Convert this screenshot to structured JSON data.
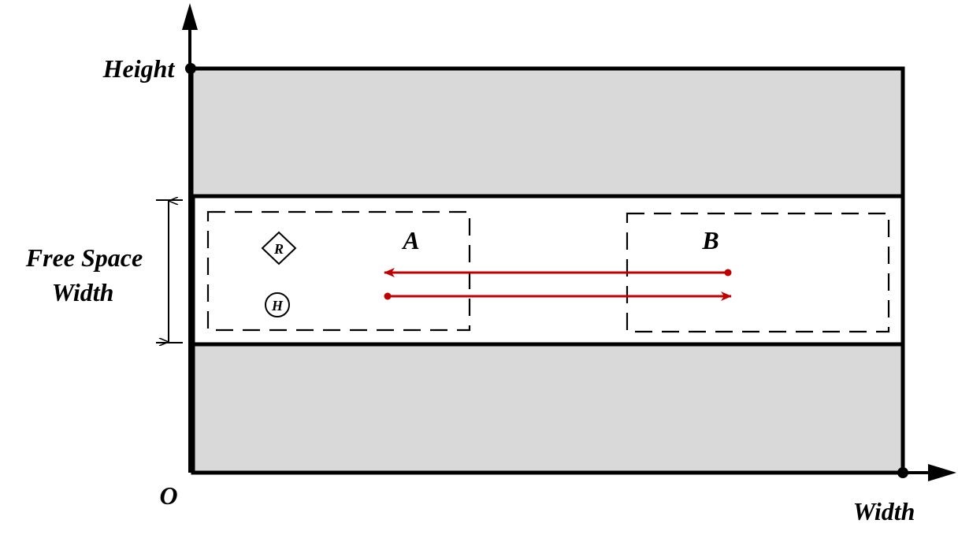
{
  "labels": {
    "height": "Height",
    "width": "Width",
    "origin": "O",
    "free_space_line1": "Free Space",
    "free_space_line2": "Width",
    "region_a": "A",
    "region_b": "B",
    "robot": "R",
    "human": "H"
  },
  "colors": {
    "obstacle_fill": "#d9d9d9",
    "outline": "#000000",
    "path_arrow": "#c00000",
    "background": "#ffffff"
  }
}
